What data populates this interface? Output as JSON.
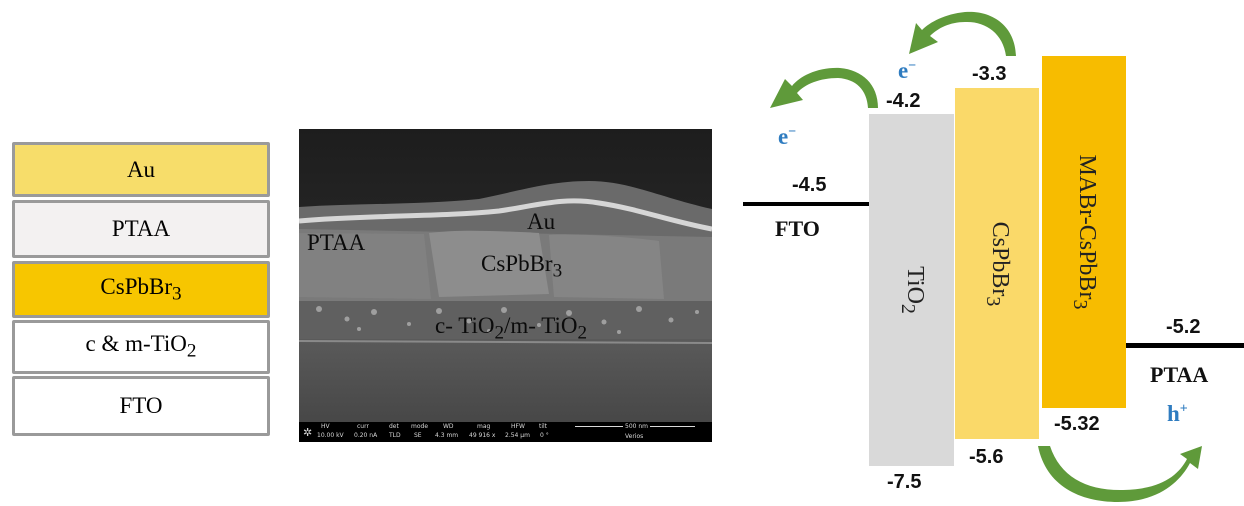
{
  "stack": {
    "layers": [
      {
        "label": "Au",
        "color": "#f7dd6a"
      },
      {
        "label": "PTAA",
        "color": "#f3f1f1"
      },
      {
        "label": "CsPbBr",
        "sub": "3",
        "color": "#f7c600"
      },
      {
        "label": "c & m-TiO",
        "sub": "2",
        "color": "#ffffff"
      },
      {
        "label": "FTO",
        "color": "#ffffff"
      }
    ]
  },
  "sem": {
    "labels": {
      "au": "Au",
      "ptaa": "PTAA",
      "cspbbr": "CsPbBr",
      "cspbbr_sub": "3",
      "tio2_a": "c- TiO",
      "tio2_a_sub": "2",
      "tio2_b": "/m- TiO",
      "tio2_b_sub": "2"
    },
    "info_bar": {
      "hv_label": "HV",
      "hv_value": "10.00 kV",
      "curr_label": "curr",
      "curr_value": "0.20 nA",
      "det_label": "det",
      "det_value": "TLD",
      "mode_label": "mode",
      "mode_value": "SE",
      "wd_label": "WD",
      "wd_value": "4.3 mm",
      "mag_label": "mag",
      "mag_value": "49 916 x",
      "hfw_label": "HFW",
      "hfw_value": "2.54 μm",
      "tilt_label": "tilt",
      "tilt_value": "0 °",
      "scale_label": "500 nm",
      "brand": "Verios"
    }
  },
  "energy": {
    "fto": {
      "name": "FTO",
      "value": "-4.5",
      "color": "#000000"
    },
    "tio2": {
      "name": "TiO",
      "sub": "2",
      "top": "-4.2",
      "bottom": "-7.5",
      "color": "#d9d9d9"
    },
    "cspbbr3": {
      "name": "CsPbBr",
      "sub": "3",
      "top": "-3.3",
      "bottom": "-5.6",
      "color": "#fad969"
    },
    "mabr": {
      "name": "MABr-CsPbBr",
      "sub": "3",
      "top": "",
      "bottom": "-5.32",
      "color": "#f7bc00"
    },
    "ptaa": {
      "name": "PTAA",
      "value": "-5.2",
      "color": "#000000"
    },
    "carriers": {
      "electron_1": "e",
      "electron_1_sup": "−",
      "electron_2": "e",
      "electron_2_sup": "−",
      "hole": "h",
      "hole_sup": "+"
    },
    "arrow_color": "#5f9a3a"
  }
}
